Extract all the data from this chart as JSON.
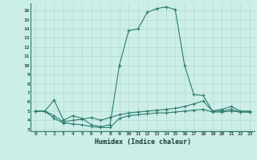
{
  "xlabel": "Humidex (Indice chaleur)",
  "bg_color": "#cceee8",
  "line_color": "#2d7d6e",
  "grid_color": "#b0d8d0",
  "xlim": [
    -0.5,
    23.5
  ],
  "ylim": [
    2.8,
    16.8
  ],
  "yticks": [
    3,
    4,
    5,
    6,
    7,
    8,
    9,
    10,
    11,
    12,
    13,
    14,
    15,
    16
  ],
  "xticks": [
    0,
    1,
    2,
    3,
    4,
    5,
    6,
    7,
    8,
    9,
    10,
    11,
    12,
    13,
    14,
    15,
    16,
    17,
    18,
    19,
    20,
    21,
    22,
    23
  ],
  "series": [
    {
      "x": [
        0,
        1,
        2,
        3,
        4,
        5,
        6,
        7,
        8,
        9,
        10,
        11,
        12,
        13,
        14,
        15,
        16,
        17,
        18,
        19,
        20,
        21,
        22,
        23
      ],
      "y": [
        5.0,
        5.0,
        6.2,
        4.0,
        4.5,
        4.2,
        3.5,
        3.3,
        3.5,
        10.0,
        13.8,
        14.0,
        15.8,
        16.2,
        16.4,
        16.1,
        10.0,
        6.8,
        6.7,
        5.0,
        5.2,
        5.5,
        5.0,
        5.0
      ]
    },
    {
      "x": [
        0,
        1,
        2,
        3,
        4,
        5,
        6,
        7,
        8,
        9,
        10,
        11,
        12,
        13,
        14,
        15,
        16,
        17,
        18,
        19,
        20,
        21,
        22,
        23
      ],
      "y": [
        5.0,
        5.0,
        4.5,
        3.8,
        4.0,
        4.1,
        4.3,
        4.0,
        4.3,
        4.6,
        4.8,
        4.9,
        5.0,
        5.1,
        5.2,
        5.3,
        5.5,
        5.8,
        6.1,
        5.0,
        5.0,
        5.2,
        4.9,
        4.9
      ]
    },
    {
      "x": [
        0,
        1,
        2,
        3,
        4,
        5,
        6,
        7,
        8,
        9,
        10,
        11,
        12,
        13,
        14,
        15,
        16,
        17,
        18,
        19,
        20,
        21,
        22,
        23
      ],
      "y": [
        5.0,
        5.0,
        4.2,
        3.7,
        3.6,
        3.5,
        3.3,
        3.2,
        3.2,
        4.2,
        4.5,
        4.6,
        4.7,
        4.8,
        4.8,
        4.9,
        5.0,
        5.1,
        5.2,
        4.9,
        4.9,
        5.0,
        4.9,
        4.9
      ]
    }
  ]
}
